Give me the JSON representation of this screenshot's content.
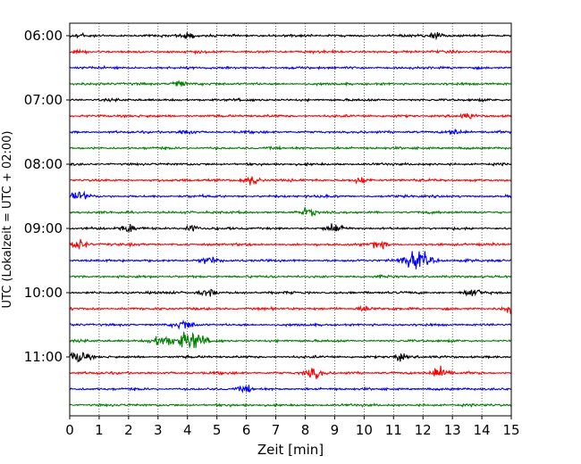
{
  "chart_data": {
    "type": "line",
    "subtype": "helicorder-seismogram",
    "xlabel": "Zeit  [min]",
    "ylabel": "UTC (Lokalzeit = UTC + 02:00)",
    "xlim": [
      0,
      15
    ],
    "x_ticks": [
      0,
      1,
      2,
      3,
      4,
      5,
      6,
      7,
      8,
      9,
      10,
      11,
      12,
      13,
      14,
      15
    ],
    "x_tick_labels": [
      "0",
      "1",
      "2",
      "3",
      "4",
      "5",
      "6",
      "7",
      "8",
      "9",
      "10",
      "11",
      "12",
      "13",
      "14",
      "15"
    ],
    "x_grid": true,
    "trace_minutes": 15,
    "y_tick_labels": [
      "06:00",
      "07:00",
      "08:00",
      "09:00",
      "10:00",
      "11:00"
    ],
    "y_tick_rows": [
      0,
      4,
      8,
      12,
      16,
      20
    ],
    "trace_colors": [
      "#000000",
      "#ff0000",
      "#0000ff",
      "#008000"
    ],
    "rows": [
      {
        "start": "06:00",
        "color": "#000000"
      },
      {
        "start": "06:15",
        "color": "#ff0000"
      },
      {
        "start": "06:30",
        "color": "#0000ff"
      },
      {
        "start": "06:45",
        "color": "#008000"
      },
      {
        "start": "07:00",
        "color": "#000000"
      },
      {
        "start": "07:15",
        "color": "#ff0000"
      },
      {
        "start": "07:30",
        "color": "#0000ff"
      },
      {
        "start": "07:45",
        "color": "#008000"
      },
      {
        "start": "08:00",
        "color": "#000000"
      },
      {
        "start": "08:15",
        "color": "#ff0000"
      },
      {
        "start": "08:30",
        "color": "#0000ff"
      },
      {
        "start": "08:45",
        "color": "#008000"
      },
      {
        "start": "09:00",
        "color": "#000000"
      },
      {
        "start": "09:15",
        "color": "#ff0000"
      },
      {
        "start": "09:30",
        "color": "#0000ff"
      },
      {
        "start": "09:45",
        "color": "#008000"
      },
      {
        "start": "10:00",
        "color": "#000000"
      },
      {
        "start": "10:15",
        "color": "#ff0000"
      },
      {
        "start": "10:30",
        "color": "#0000ff"
      },
      {
        "start": "10:45",
        "color": "#008000"
      },
      {
        "start": "11:00",
        "color": "#000000"
      },
      {
        "start": "11:15",
        "color": "#ff0000"
      },
      {
        "start": "11:30",
        "color": "#0000ff"
      },
      {
        "start": "11:45",
        "color": "#008000"
      }
    ],
    "events": [
      {
        "row": 0,
        "minute": 0.3,
        "amplitude": 0.3
      },
      {
        "row": 0,
        "minute": 4.0,
        "amplitude": 0.3
      },
      {
        "row": 0,
        "minute": 12.4,
        "amplitude": 0.35
      },
      {
        "row": 3,
        "minute": 3.7,
        "amplitude": 0.35
      },
      {
        "row": 5,
        "minute": 13.5,
        "amplitude": 0.3
      },
      {
        "row": 6,
        "minute": 4.0,
        "amplitude": 0.3
      },
      {
        "row": 6,
        "minute": 13.1,
        "amplitude": 0.35
      },
      {
        "row": 9,
        "minute": 6.2,
        "amplitude": 0.5
      },
      {
        "row": 9,
        "minute": 9.9,
        "amplitude": 0.35
      },
      {
        "row": 10,
        "minute": 0.3,
        "amplitude": 0.45
      },
      {
        "row": 11,
        "minute": 8.1,
        "amplitude": 0.4
      },
      {
        "row": 12,
        "minute": 2.0,
        "amplitude": 0.45
      },
      {
        "row": 12,
        "minute": 9.0,
        "amplitude": 0.45
      },
      {
        "row": 12,
        "minute": 4.1,
        "amplitude": 0.35
      },
      {
        "row": 13,
        "minute": 0.3,
        "amplitude": 0.5
      },
      {
        "row": 13,
        "minute": 10.5,
        "amplitude": 0.4
      },
      {
        "row": 14,
        "minute": 4.7,
        "amplitude": 0.4
      },
      {
        "row": 14,
        "minute": 11.8,
        "amplitude": 1.0
      },
      {
        "row": 16,
        "minute": 4.7,
        "amplitude": 0.4
      },
      {
        "row": 16,
        "minute": 13.7,
        "amplitude": 0.45
      },
      {
        "row": 17,
        "minute": 10.0,
        "amplitude": 0.35
      },
      {
        "row": 17,
        "minute": 15.0,
        "amplitude": 0.4
      },
      {
        "row": 18,
        "minute": 3.9,
        "amplitude": 0.5
      },
      {
        "row": 19,
        "minute": 4.1,
        "amplitude": 1.0
      },
      {
        "row": 19,
        "minute": 3.1,
        "amplitude": 0.6
      },
      {
        "row": 20,
        "minute": 0.3,
        "amplitude": 0.6
      },
      {
        "row": 20,
        "minute": 11.2,
        "amplitude": 0.35
      },
      {
        "row": 21,
        "minute": 8.3,
        "amplitude": 0.5
      },
      {
        "row": 21,
        "minute": 12.6,
        "amplitude": 0.6
      },
      {
        "row": 22,
        "minute": 6.0,
        "amplitude": 0.35
      }
    ]
  }
}
